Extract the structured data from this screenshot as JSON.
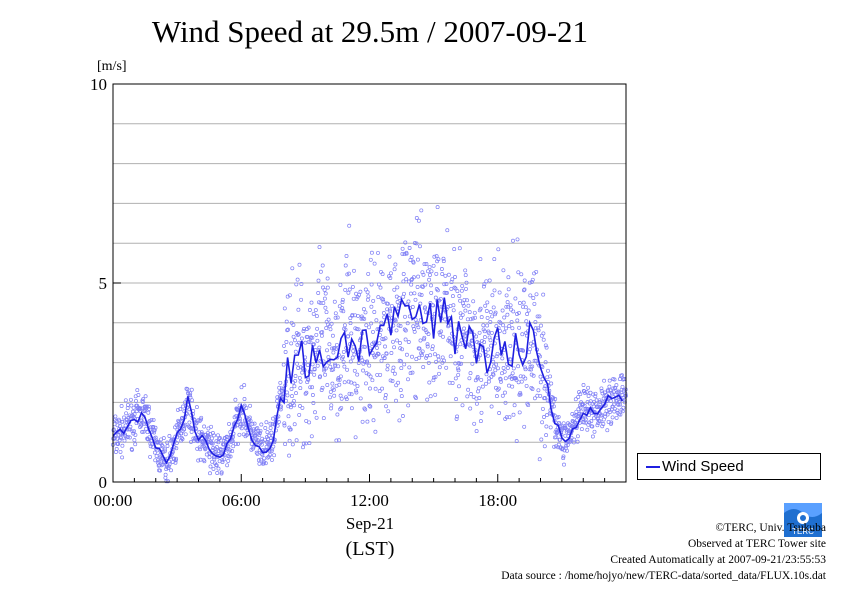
{
  "chart_data": {
    "type": "line",
    "title": "Wind Speed at 29.5m / 2007-09-21",
    "ylabel": "[m/s]",
    "ylim": [
      0,
      10
    ],
    "yticks": [
      "0",
      "5",
      "10"
    ],
    "xlim_hours": [
      0,
      24
    ],
    "xticks": [
      "00:00",
      "06:00",
      "12:00",
      "18:00"
    ],
    "grid": "horizontal",
    "legend_position": "right",
    "series": [
      {
        "name": "Wind Speed",
        "color": "#1f1fe0",
        "scatter_color": "#7f7ff5",
        "x_hours": [
          0,
          0.5,
          1,
          1.5,
          2,
          2.5,
          3,
          3.5,
          4,
          4.5,
          5,
          5.5,
          6,
          6.5,
          7,
          7.5,
          8,
          8.5,
          9,
          9.5,
          10,
          10.5,
          11,
          11.5,
          12,
          12.5,
          13,
          13.5,
          14,
          14.5,
          15,
          15.5,
          16,
          16.5,
          17,
          17.5,
          18,
          18.5,
          19,
          19.5,
          20,
          20.5,
          21,
          21.5,
          22,
          22.5,
          23,
          23.5,
          24
        ],
        "values": [
          1.1,
          1.3,
          1.6,
          1.7,
          0.9,
          0.4,
          1.1,
          2.0,
          1.1,
          0.9,
          0.6,
          1.0,
          1.9,
          1.2,
          0.7,
          1.1,
          2.5,
          3.1,
          3.0,
          3.3,
          3.2,
          3.3,
          3.6,
          3.5,
          3.5,
          3.8,
          3.9,
          4.0,
          4.3,
          4.1,
          4.0,
          4.5,
          3.8,
          3.6,
          3.5,
          3.3,
          3.4,
          3.2,
          3.3,
          3.7,
          3.2,
          1.9,
          1.0,
          1.3,
          1.8,
          1.7,
          2.0,
          2.1,
          2.2
        ]
      }
    ]
  },
  "labels": {
    "date": "Sep-21",
    "timezone": "(LST)"
  },
  "footer": {
    "copyright": "©TERC, Univ. Tsukuba",
    "observed": "Observed at TERC Tower site",
    "created": "Created Automatically at 2007-09-21/23:55:53",
    "source": "Data source : /home/hojyo/new/TERC-data/sorted_data/FLUX.10s.dat"
  },
  "logo": {
    "text": "TERC"
  }
}
